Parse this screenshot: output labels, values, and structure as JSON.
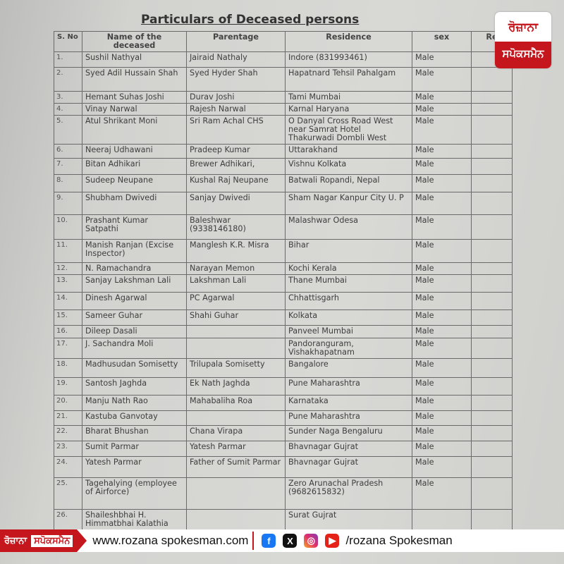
{
  "document": {
    "title": "Particulars of Deceased persons",
    "headers": [
      "S. No",
      "Name of the deceased",
      "Parentage",
      "Residence",
      "sex",
      "Re"
    ],
    "rows": [
      [
        "1.",
        "Sushil Nathyal",
        "Jairaid Nathaly",
        "Indore (831993461)",
        "Male"
      ],
      [
        "2.",
        "Syed Adil Hussain Shah",
        "Syed Hyder Shah",
        "Hapatnard Tehsil Pahalgam",
        "Male"
      ],
      [
        "3.",
        "Hemant Suhas Joshi",
        "Durav Joshi",
        "Tami Mumbai",
        "Male"
      ],
      [
        "4.",
        "Vinay Narwal",
        "Rajesh Narwal",
        "Karnal Haryana",
        "Male"
      ],
      [
        "5.",
        "Atul Shrikant Moni",
        "Sri Ram Achal CHS",
        "O Danyal Cross Road West near Samrat Hotel Thakurwadi Dombli West",
        "Male"
      ],
      [
        "6.",
        "Neeraj Udhawani",
        "Pradeep Kumar",
        "Uttarakhand",
        "Male"
      ],
      [
        "7.",
        "Bitan Adhikari",
        "Brewer Adhikari,",
        "Vishnu Kolkata",
        "Male"
      ],
      [
        "8.",
        "Sudeep Neupane",
        "Kushal Raj Neupane",
        "Batwali Ropandi, Nepal",
        "Male"
      ],
      [
        "9.",
        "Shubham Dwivedi",
        "Sanjay Dwivedi",
        "Sham Nagar Kanpur City U. P",
        "Male"
      ],
      [
        "10.",
        "Prashant Kumar Satpathi",
        "Baleshwar (9338146180)",
        "Malashwar Odesa",
        "Male"
      ],
      [
        "11.",
        "Manish Ranjan (Excise Inspector)",
        "Manglesh K.R. Misra",
        "Bihar",
        "Male"
      ],
      [
        "12.",
        "N. Ramachandra",
        "Narayan Memon",
        "Kochi Kerala",
        "Male"
      ],
      [
        "13.",
        "Sanjay Lakshman Lali",
        "Lakshman Lali",
        "Thane Mumbai",
        "Male"
      ],
      [
        "14.",
        "Dinesh Agarwal",
        "PC Agarwal",
        "Chhattisgarh",
        "Male"
      ],
      [
        "15.",
        "Sameer Guhar",
        "Shahi Guhar",
        "Kolkata",
        "Male"
      ],
      [
        "16.",
        "Dileep Dasali",
        "",
        "Panveel Mumbai",
        "Male"
      ],
      [
        "17.",
        "J. Sachandra Moli",
        "",
        "Pandoranguram, Vishakhapatnam",
        "Male"
      ],
      [
        "18.",
        "Madhusudan Somisetty",
        "Trilupala Somisetty",
        "Bangalore",
        "Male"
      ],
      [
        "19.",
        "Santosh Jaghda",
        "Ek Nath Jaghda",
        "Pune Maharashtra",
        "Male"
      ],
      [
        "20.",
        "Manju Nath Rao",
        "Mahabaliha Roa",
        "Karnataka",
        "Male"
      ],
      [
        "21.",
        "Kastuba Ganvotay",
        "",
        "Pune Maharashtra",
        "Male"
      ],
      [
        "22.",
        "Bharat Bhushan",
        "Chana Virapa",
        "Sunder Naga Bengaluru",
        "Male"
      ],
      [
        "23.",
        "Sumit Parmar",
        "Yatesh Parmar",
        "Bhavnagar Gujrat",
        "Male"
      ],
      [
        "24.",
        "Yatesh Parmar",
        "Father of Sumit Parmar",
        "Bhavnagar Gujrat",
        "Male"
      ],
      [
        "25.",
        "Tagehalying (employee of Airforce)",
        "",
        "Zero Arunachal Pradesh (9682615832)",
        "Male"
      ],
      [
        "26.",
        "Shaileshbhai H. Himmatbhai Kalathia",
        "",
        "Surat Gujrat",
        ""
      ]
    ]
  },
  "logo": {
    "line1": "ਰੋਜ਼ਾਨਾ",
    "line2": "ਸਪੋਕਸਮੈਨ"
  },
  "footer": {
    "brand_part1": "ਰੋਜ਼ਾਨਾ",
    "brand_part2": "ਸਪੋਕਸਮੈਨ",
    "website": "www.rozana spokesman.com",
    "social_icons": [
      "facebook-icon",
      "x-icon",
      "instagram-icon",
      "youtube-icon"
    ],
    "handle": "/rozana Spokesman"
  },
  "colors": {
    "brand_red": "#c4161c"
  }
}
